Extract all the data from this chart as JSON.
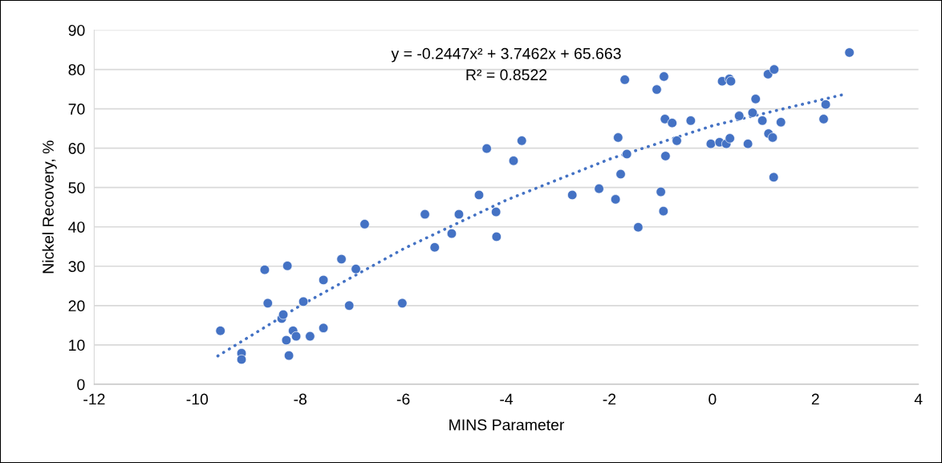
{
  "chart_data": {
    "type": "scatter",
    "xlabel": "MINS Parameter",
    "ylabel": "Nickel Recovery, %",
    "xlim": [
      -12,
      4
    ],
    "xticks": [
      -12,
      -10,
      -8,
      -6,
      -4,
      -2,
      0,
      2,
      4
    ],
    "ylim": [
      0,
      90
    ],
    "yticks": [
      0,
      10,
      20,
      30,
      40,
      50,
      60,
      70,
      80,
      90
    ],
    "grid": "y",
    "annotations": [
      "y = -0.2447x² + 3.7462x + 65.663",
      "R² = 0.8522"
    ],
    "series": [
      {
        "marker": "circle",
        "color": "#4472c4",
        "x": [
          -9.55,
          -9.14,
          -9.14,
          -8.69,
          -8.63,
          -8.36,
          -8.33,
          -8.25,
          -8.27,
          -8.22,
          -8.14,
          -8.08,
          -7.94,
          -7.81,
          -7.55,
          -7.55,
          -7.2,
          -7.05,
          -6.92,
          -6.75,
          -6.02,
          -5.58,
          -5.39,
          -5.06,
          -4.92,
          -4.53,
          -4.38,
          -4.2,
          -4.19,
          -3.86,
          -3.7,
          -2.72,
          -2.2,
          -1.88,
          -1.83,
          -1.78,
          -1.7,
          -1.66,
          -1.44,
          -1.08,
          -1.0,
          -0.95,
          -0.94,
          -0.92,
          -0.91,
          -0.78,
          -0.69,
          -0.42,
          -0.03,
          0.14,
          0.19,
          0.27,
          0.33,
          0.36,
          0.34,
          0.52,
          0.69,
          0.78,
          0.84,
          0.97,
          1.08,
          1.09,
          1.17,
          1.2,
          1.19,
          1.33,
          2.16,
          2.2,
          2.66
        ],
        "values": [
          13.6,
          7.9,
          6.3,
          29.1,
          20.6,
          16.7,
          17.7,
          30.1,
          11.2,
          7.3,
          13.6,
          12.2,
          21.0,
          12.2,
          26.5,
          14.3,
          31.8,
          20.0,
          29.3,
          40.7,
          20.6,
          43.2,
          34.8,
          38.3,
          43.2,
          48.1,
          59.9,
          43.8,
          37.5,
          56.8,
          61.9,
          48.1,
          49.7,
          47.0,
          62.7,
          53.4,
          77.4,
          58.5,
          39.9,
          74.9,
          48.9,
          44.0,
          78.2,
          67.4,
          58.0,
          66.4,
          61.9,
          67.0,
          61.1,
          61.5,
          77.0,
          61.1,
          77.6,
          77.0,
          62.5,
          68.2,
          61.1,
          69.0,
          72.5,
          67.0,
          78.8,
          63.7,
          62.7,
          80.0,
          52.6,
          66.6,
          67.4,
          71.1,
          84.3
        ]
      },
      {
        "type": "line",
        "marker": "none",
        "color": "#4472c4",
        "line_style": "dotted",
        "x": [
          -9.6,
          -8,
          -6,
          -4,
          -2,
          0,
          2.6
        ],
        "values": [
          7.2,
          20.0,
          34.4,
          46.8,
          57.2,
          65.7,
          73.8
        ]
      }
    ]
  }
}
